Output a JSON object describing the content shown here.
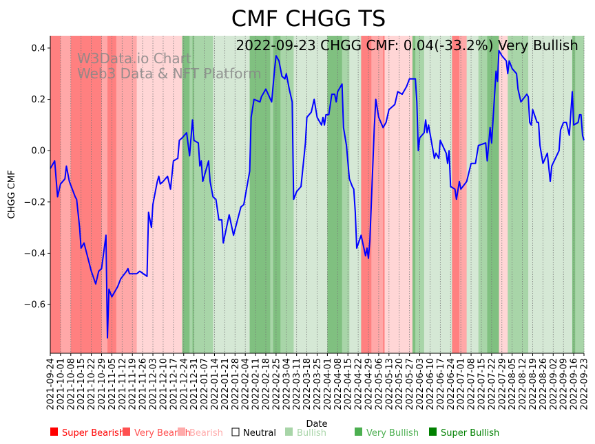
{
  "chart_data": {
    "type": "line",
    "title": "CMF CHGG TS",
    "annotation": "2022-09-23 CHGG CMF: 0.04(-33.2%) Very Bullish",
    "watermark": [
      "W3Data.io Chart",
      "Web3 Data & NFT Platform"
    ],
    "xlabel": "Date",
    "ylabel": "CHGG CMF",
    "x_start_date": "2021-09-24",
    "x_unit": "days since start",
    "xlim": [
      0,
      364
    ],
    "ylim": [
      -0.79,
      0.448
    ],
    "yticks": [
      0.4,
      0.2,
      0.0,
      -0.2,
      -0.4,
      -0.6
    ],
    "ytick_labels": [
      "0.4",
      "0.2",
      "0.0",
      "−0.2",
      "−0.4",
      "−0.6"
    ],
    "xtick_labels": [
      "2021-09-24",
      "2021-10-01",
      "2021-10-08",
      "2021-10-15",
      "2021-10-22",
      "2021-10-29",
      "2021-11-05",
      "2021-11-12",
      "2021-11-19",
      "2021-11-26",
      "2021-12-03",
      "2021-12-10",
      "2021-12-17",
      "2021-12-24",
      "2021-12-31",
      "2022-01-07",
      "2022-01-14",
      "2022-01-21",
      "2022-01-28",
      "2022-02-04",
      "2022-02-11",
      "2022-02-18",
      "2022-02-25",
      "2022-03-04",
      "2022-03-11",
      "2022-03-18",
      "2022-03-25",
      "2022-04-01",
      "2022-04-08",
      "2022-04-15",
      "2022-04-22",
      "2022-04-29",
      "2022-05-06",
      "2022-05-13",
      "2022-05-20",
      "2022-05-27",
      "2022-06-03",
      "2022-06-10",
      "2022-06-17",
      "2022-06-24",
      "2022-07-01",
      "2022-07-08",
      "2022-07-15",
      "2022-07-22",
      "2022-07-29",
      "2022-08-05",
      "2022-08-12",
      "2022-08-19",
      "2022-08-26",
      "2022-09-02",
      "2022-09-09",
      "2022-09-16",
      "2022-09-23"
    ],
    "grid": "vertical dotted",
    "line_color": "#0000ff",
    "series": [
      {
        "name": "CMF",
        "points": [
          [
            0,
            -0.07
          ],
          [
            3,
            -0.04
          ],
          [
            5,
            -0.18
          ],
          [
            7,
            -0.13
          ],
          [
            10,
            -0.11
          ],
          [
            11,
            -0.06
          ],
          [
            13,
            -0.12
          ],
          [
            17,
            -0.18
          ],
          [
            18,
            -0.19
          ],
          [
            20,
            -0.3
          ],
          [
            21,
            -0.38
          ],
          [
            23,
            -0.36
          ],
          [
            28,
            -0.47
          ],
          [
            31,
            -0.52
          ],
          [
            33,
            -0.47
          ],
          [
            35,
            -0.46
          ],
          [
            38,
            -0.33
          ],
          [
            39,
            -0.73
          ],
          [
            40,
            -0.54
          ],
          [
            42,
            -0.57
          ],
          [
            46,
            -0.53
          ],
          [
            48,
            -0.5
          ],
          [
            52,
            -0.47
          ],
          [
            53,
            -0.46
          ],
          [
            54,
            -0.48
          ],
          [
            59,
            -0.48
          ],
          [
            61,
            -0.47
          ],
          [
            66,
            -0.49
          ],
          [
            67,
            -0.24
          ],
          [
            69,
            -0.3
          ],
          [
            70,
            -0.21
          ],
          [
            73,
            -0.12
          ],
          [
            74,
            -0.1
          ],
          [
            75,
            -0.13
          ],
          [
            77,
            -0.12
          ],
          [
            80,
            -0.1
          ],
          [
            82,
            -0.15
          ],
          [
            84,
            -0.04
          ],
          [
            87,
            -0.03
          ],
          [
            88,
            0.04
          ],
          [
            90,
            0.05
          ],
          [
            93,
            0.07
          ],
          [
            95,
            -0.02
          ],
          [
            97,
            0.12
          ],
          [
            98,
            0.04
          ],
          [
            101,
            0.03
          ],
          [
            102,
            -0.06
          ],
          [
            103,
            -0.04
          ],
          [
            104,
            -0.12
          ],
          [
            108,
            -0.04
          ],
          [
            109,
            -0.12
          ],
          [
            111,
            -0.18
          ],
          [
            113,
            -0.19
          ],
          [
            115,
            -0.27
          ],
          [
            117,
            -0.27
          ],
          [
            118,
            -0.36
          ],
          [
            122,
            -0.25
          ],
          [
            125,
            -0.33
          ],
          [
            130,
            -0.22
          ],
          [
            132,
            -0.21
          ],
          [
            136,
            -0.08
          ],
          [
            137,
            0.13
          ],
          [
            139,
            0.2
          ],
          [
            143,
            0.19
          ],
          [
            144,
            0.21
          ],
          [
            147,
            0.24
          ],
          [
            151,
            0.19
          ],
          [
            153,
            0.32
          ],
          [
            154,
            0.37
          ],
          [
            156,
            0.35
          ],
          [
            158,
            0.29
          ],
          [
            160,
            0.28
          ],
          [
            161,
            0.3
          ],
          [
            163,
            0.24
          ],
          [
            165,
            0.19
          ],
          [
            166,
            -0.19
          ],
          [
            168,
            -0.16
          ],
          [
            171,
            -0.14
          ],
          [
            174,
            0.03
          ],
          [
            175,
            0.13
          ],
          [
            178,
            0.15
          ],
          [
            180,
            0.2
          ],
          [
            182,
            0.13
          ],
          [
            185,
            0.1
          ],
          [
            186,
            0.13
          ],
          [
            187,
            0.1
          ],
          [
            188,
            0.14
          ],
          [
            190,
            0.14
          ],
          [
            192,
            0.22
          ],
          [
            194,
            0.22
          ],
          [
            195,
            0.19
          ],
          [
            196,
            0.23
          ],
          [
            199,
            0.26
          ],
          [
            200,
            0.09
          ],
          [
            202,
            0.02
          ],
          [
            204,
            -0.11
          ],
          [
            206,
            -0.14
          ],
          [
            207,
            -0.15
          ],
          [
            208,
            -0.24
          ],
          [
            209,
            -0.38
          ],
          [
            212,
            -0.33
          ],
          [
            215,
            -0.41
          ],
          [
            216,
            -0.38
          ],
          [
            217,
            -0.42
          ],
          [
            218,
            -0.35
          ],
          [
            221,
            0.09
          ],
          [
            222,
            0.2
          ],
          [
            224,
            0.13
          ],
          [
            227,
            0.09
          ],
          [
            229,
            0.11
          ],
          [
            231,
            0.16
          ],
          [
            235,
            0.18
          ],
          [
            237,
            0.23
          ],
          [
            240,
            0.22
          ],
          [
            243,
            0.25
          ],
          [
            245,
            0.28
          ],
          [
            249,
            0.28
          ],
          [
            250,
            0.19
          ],
          [
            251,
            0.0
          ],
          [
            252,
            0.05
          ],
          [
            255,
            0.07
          ],
          [
            256,
            0.12
          ],
          [
            257,
            0.07
          ],
          [
            258,
            0.1
          ],
          [
            262,
            -0.03
          ],
          [
            263,
            -0.01
          ],
          [
            265,
            -0.03
          ],
          [
            266,
            0.04
          ],
          [
            270,
            -0.01
          ],
          [
            271,
            -0.05
          ],
          [
            272,
            0.0
          ],
          [
            273,
            -0.14
          ],
          [
            276,
            -0.15
          ],
          [
            277,
            -0.19
          ],
          [
            279,
            -0.12
          ],
          [
            280,
            -0.15
          ],
          [
            284,
            -0.12
          ],
          [
            287,
            -0.05
          ],
          [
            290,
            -0.05
          ],
          [
            292,
            0.02
          ],
          [
            297,
            0.03
          ],
          [
            298,
            -0.04
          ],
          [
            300,
            0.09
          ],
          [
            301,
            0.03
          ],
          [
            304,
            0.31
          ],
          [
            305,
            0.27
          ],
          [
            306,
            0.39
          ],
          [
            308,
            0.37
          ],
          [
            311,
            0.35
          ],
          [
            312,
            0.3
          ],
          [
            313,
            0.35
          ],
          [
            315,
            0.32
          ],
          [
            318,
            0.3
          ],
          [
            319,
            0.24
          ],
          [
            321,
            0.19
          ],
          [
            325,
            0.22
          ],
          [
            326,
            0.21
          ],
          [
            327,
            0.11
          ],
          [
            328,
            0.1
          ],
          [
            329,
            0.16
          ],
          [
            332,
            0.11
          ],
          [
            333,
            0.11
          ],
          [
            334,
            0.02
          ],
          [
            336,
            -0.05
          ],
          [
            339,
            -0.01
          ],
          [
            341,
            -0.12
          ],
          [
            342,
            -0.06
          ],
          [
            347,
            0.0
          ],
          [
            348,
            0.08
          ],
          [
            350,
            0.11
          ],
          [
            352,
            0.11
          ],
          [
            354,
            0.06
          ],
          [
            356,
            0.23
          ],
          [
            357,
            0.1
          ],
          [
            360,
            0.11
          ],
          [
            361,
            0.14
          ],
          [
            362,
            0.14
          ],
          [
            363,
            0.06
          ],
          [
            364,
            0.04
          ]
        ]
      }
    ],
    "sentiment_colors": {
      "Super Bearish": "#ff8080",
      "Very Bearish": "#ffa8a8",
      "Bearish": "#ffd6d6",
      "Neutral": "#ffffff",
      "Bullish": "#d5e8d5",
      "Very Bullish": "#a8d5a8",
      "Super Bullish": "#80c080"
    },
    "bands": [
      [
        0,
        7,
        "Super Bearish"
      ],
      [
        7,
        14,
        "Very Bearish"
      ],
      [
        14,
        35,
        "Super Bearish"
      ],
      [
        35,
        39,
        "Very Bearish"
      ],
      [
        39,
        45,
        "Super Bearish"
      ],
      [
        45,
        59,
        "Very Bearish"
      ],
      [
        59,
        90,
        "Bearish"
      ],
      [
        90,
        95,
        "Super Bullish"
      ],
      [
        95,
        97,
        "Very Bullish"
      ],
      [
        97,
        98,
        "Super Bullish"
      ],
      [
        98,
        111,
        "Very Bullish"
      ],
      [
        111,
        136,
        "Bullish"
      ],
      [
        136,
        150,
        "Super Bullish"
      ],
      [
        150,
        152,
        "Very Bullish"
      ],
      [
        152,
        157,
        "Super Bullish"
      ],
      [
        157,
        166,
        "Very Bullish"
      ],
      [
        166,
        189,
        "Bullish"
      ],
      [
        189,
        199,
        "Super Bullish"
      ],
      [
        199,
        204,
        "Very Bullish"
      ],
      [
        204,
        212,
        "Bullish"
      ],
      [
        212,
        219,
        "Super Bearish"
      ],
      [
        219,
        227,
        "Very Bearish"
      ],
      [
        227,
        228,
        "Super Bearish"
      ],
      [
        228,
        247,
        "Bearish"
      ],
      [
        247,
        249,
        "Super Bullish"
      ],
      [
        249,
        255,
        "Very Bullish"
      ],
      [
        255,
        274,
        "Bullish"
      ],
      [
        274,
        279,
        "Super Bearish"
      ],
      [
        279,
        284,
        "Very Bearish"
      ],
      [
        284,
        292,
        "Bullish"
      ],
      [
        292,
        298,
        "Very Bullish"
      ],
      [
        298,
        306,
        "Super Bullish"
      ],
      [
        306,
        312,
        "Bearish"
      ],
      [
        312,
        326,
        "Very Bullish"
      ],
      [
        326,
        356,
        "Bullish"
      ],
      [
        356,
        358,
        "Super Bullish"
      ],
      [
        358,
        364,
        "Very Bullish"
      ]
    ],
    "legend": [
      {
        "label": "Super Bearish",
        "color": "#ff0000"
      },
      {
        "label": "Very Bearish",
        "color": "#ff5050"
      },
      {
        "label": "Bearish",
        "color": "#ffaaaa"
      },
      {
        "label": "Neutral",
        "color": "#000000"
      },
      {
        "label": "Bullish",
        "color": "#a8d5a8"
      },
      {
        "label": "Very Bullish",
        "color": "#4caf50"
      },
      {
        "label": "Super Bullish",
        "color": "#008000"
      }
    ],
    "legend_placement": "bottom"
  }
}
